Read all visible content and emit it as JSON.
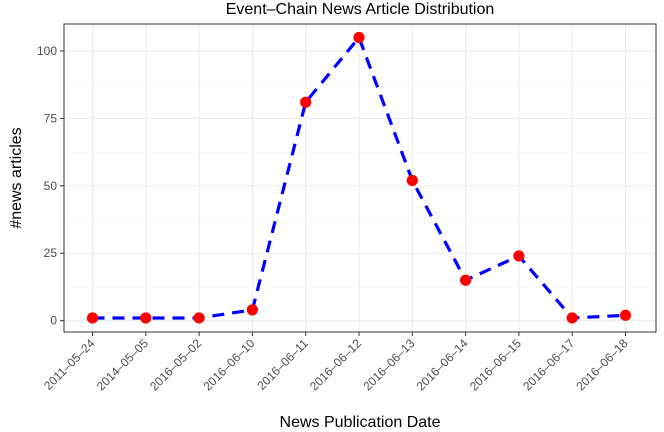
{
  "chart_data": {
    "type": "line",
    "title": "Event–Chain News Article Distribution",
    "xlabel": "News Publication Date",
    "ylabel": "#news articles",
    "categories": [
      "2011–05–24",
      "2014–05–05",
      "2016–05–02",
      "2016–06–10",
      "2016–06–11",
      "2016–06–12",
      "2016–06–13",
      "2016–06–14",
      "2016–06–15",
      "2016–06–17",
      "2016–06–18"
    ],
    "series": [
      {
        "values": [
          1,
          1,
          1,
          4,
          81,
          105,
          52,
          15,
          24,
          1,
          2
        ]
      }
    ],
    "ylim": [
      -4.2,
      110
    ],
    "yticks": [
      0,
      25,
      50,
      75,
      100
    ],
    "grid": true,
    "line_color": "#0000ff",
    "line_style": "dashed",
    "point_color": "#ff0000"
  }
}
